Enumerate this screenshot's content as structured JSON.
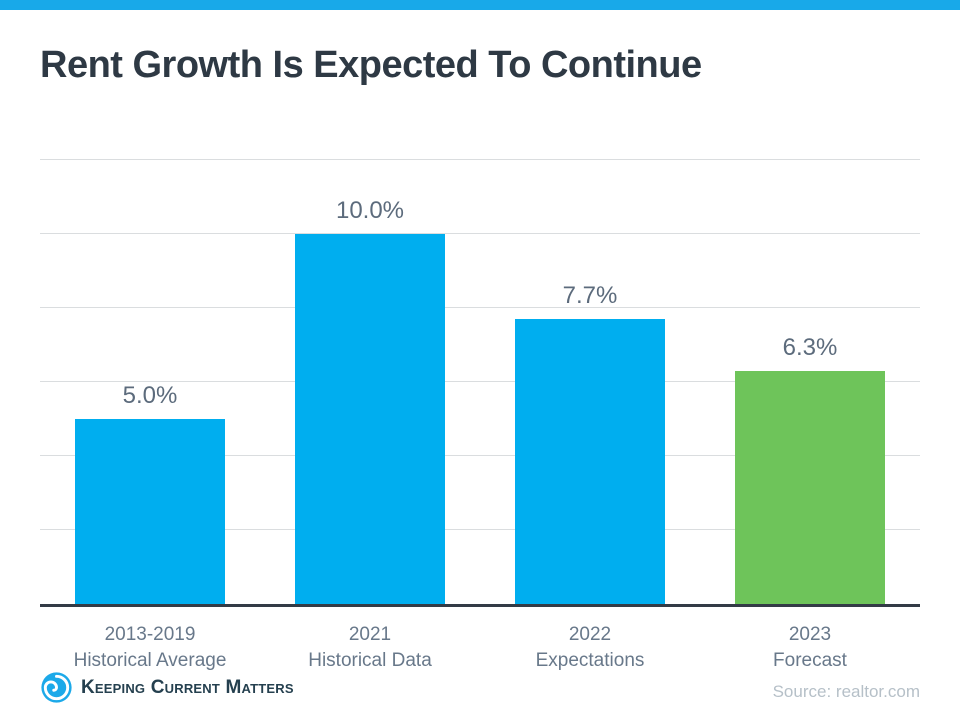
{
  "page": {
    "top_strip_color": "#18A9E9"
  },
  "header": {
    "title": "Rent Growth Is Expected To Continue",
    "title_color": "#2E3944"
  },
  "chart_data": {
    "type": "bar",
    "title": "Rent Growth Is Expected To Continue",
    "categories": [
      {
        "line1": "2013-2019",
        "line2": "Historical Average"
      },
      {
        "line1": "2021",
        "line2": "Historical Data"
      },
      {
        "line1": "2022",
        "line2": "Expectations"
      },
      {
        "line1": "2023",
        "line2": "Forecast"
      }
    ],
    "values": [
      5.0,
      10.0,
      7.7,
      6.3
    ],
    "value_labels": [
      "5.0%",
      "10.0%",
      "7.7%",
      "6.3%"
    ],
    "bar_colors": [
      "#00AEEF",
      "#00AEEF",
      "#00AEEF",
      "#6EC45A"
    ],
    "xlabel": "",
    "ylabel": "",
    "ylim": [
      0,
      12
    ],
    "gridline_step": 2,
    "grid": true,
    "legend": false,
    "styles": {
      "value_label_color": "#5C6B7C",
      "category_label_color": "#68788A",
      "gridline_color": "#DADDDF",
      "axis_color": "#333B46"
    }
  },
  "footer": {
    "logo_text": "Keeping Current Matters",
    "logo_text_color": "#25404F",
    "logo_icon_color": "#1CA9E9",
    "source": "Source: realtor.com",
    "source_color": "#B6C0C8"
  }
}
